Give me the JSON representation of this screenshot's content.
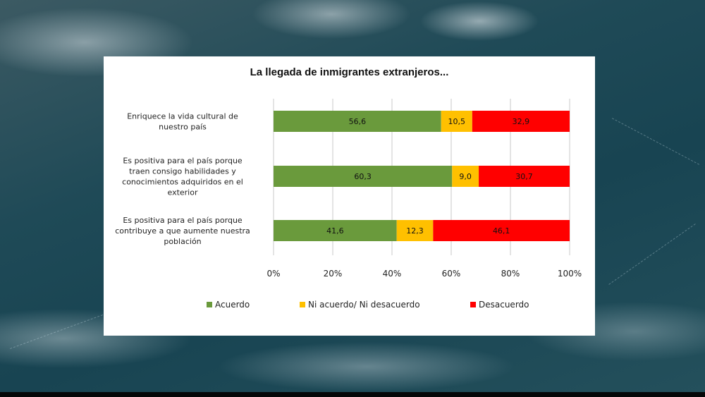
{
  "chart_data": {
    "type": "bar",
    "stacked": true,
    "orientation": "horizontal",
    "title": "La llegada de inmigrantes extranjeros...",
    "categories": [
      [
        "Enriquece la vida cultural de",
        "nuestro país"
      ],
      [
        "Es positiva para el país porque",
        "traen consigo habilidades y",
        "conocimientos adquiridos en el",
        "exterior"
      ],
      [
        "Es positiva para el país porque",
        "contribuye a que aumente nuestra",
        "población"
      ]
    ],
    "series": [
      {
        "name": "Acuerdo",
        "color": "#6a9a3c",
        "values": [
          56.6,
          60.3,
          41.6
        ],
        "labels": [
          "56,6",
          "60,3",
          "41,6"
        ]
      },
      {
        "name": "Ni acuerdo/ Ni desacuerdo",
        "color": "#ffc000",
        "values": [
          10.5,
          9.0,
          12.3
        ],
        "labels": [
          "10,5",
          "9,0",
          "12,3"
        ]
      },
      {
        "name": "Desacuerdo",
        "color": "#ff0000",
        "values": [
          32.9,
          30.7,
          46.1
        ],
        "labels": [
          "32,9",
          "30,7",
          "46,1"
        ]
      }
    ],
    "xlim": [
      0,
      100
    ],
    "xticks": [
      "0%",
      "20%",
      "40%",
      "60%",
      "80%",
      "100%"
    ],
    "grid": true,
    "legend_position": "bottom"
  }
}
